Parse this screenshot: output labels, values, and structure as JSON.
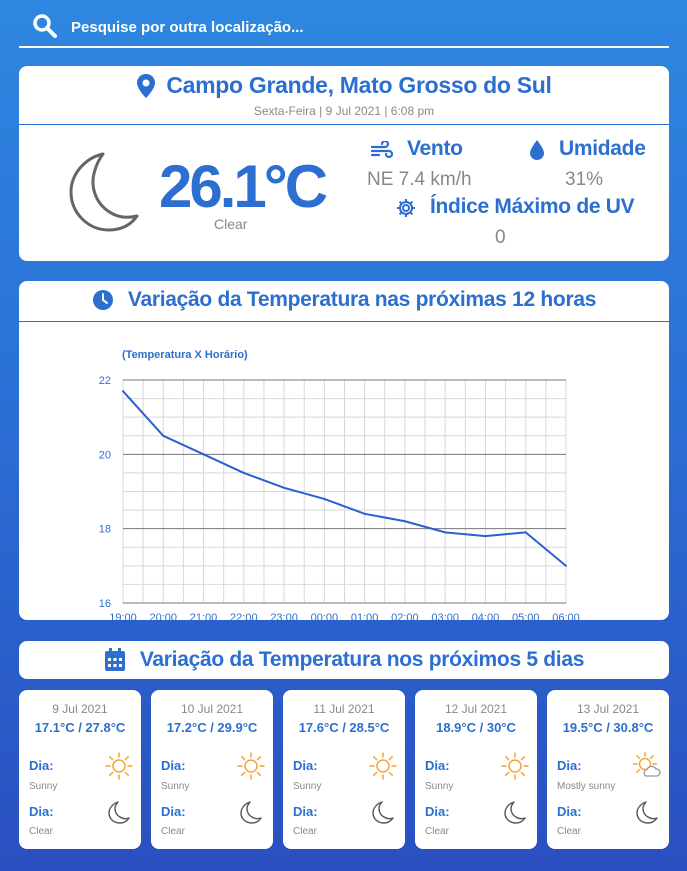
{
  "search": {
    "placeholder": "Pesquise por outra localização...",
    "icon": "search-icon"
  },
  "current": {
    "city": "Campo Grande, Mato Grosso do Sul",
    "datetime": "Sexta-Feira | 9 Jul 2021 | 6:08 pm",
    "temperature": "26.1°C",
    "condition": "Clear",
    "wind": {
      "label": "Vento",
      "value": "NE 7.4 km/h"
    },
    "humidity": {
      "label": "Umidade",
      "value": "31%"
    },
    "uv": {
      "label": "Índice Máximo de UV",
      "value": "0"
    }
  },
  "hourly": {
    "title": "Variação da Temperatura nas próximas 12 horas"
  },
  "chart_data": {
    "type": "line",
    "title": "(Temperatura X Horário)",
    "x": [
      "19:00",
      "20:00",
      "21:00",
      "22:00",
      "23:00",
      "00:00",
      "01:00",
      "02:00",
      "03:00",
      "04:00",
      "05:00",
      "06:00"
    ],
    "series": [
      {
        "values": [
          21.7,
          20.5,
          20.0,
          19.5,
          19.1,
          18.8,
          18.4,
          18.2,
          17.9,
          17.8,
          17.9,
          17.0
        ]
      }
    ],
    "ylim": [
      16,
      22
    ],
    "yticks": [
      "16",
      "18",
      "20",
      "22"
    ],
    "grid": true,
    "color": "#2c5fd1"
  },
  "daily": {
    "title": "Variação da Temperatura nos próximos 5 dias",
    "day_label": "Dia:",
    "days": [
      {
        "date": "9 Jul 2021",
        "range": "17.1°C / 27.8°C",
        "day_cond": "Sunny",
        "night_cond": "Clear",
        "day_icon": "sun-icon"
      },
      {
        "date": "10 Jul 2021",
        "range": "17.2°C / 29.9°C",
        "day_cond": "Sunny",
        "night_cond": "Clear",
        "day_icon": "sun-icon"
      },
      {
        "date": "11 Jul 2021",
        "range": "17.6°C / 28.5°C",
        "day_cond": "Sunny",
        "night_cond": "Clear",
        "day_icon": "sun-icon"
      },
      {
        "date": "12 Jul 2021",
        "range": "18.9°C / 30°C",
        "day_cond": "Sunny",
        "night_cond": "Clear",
        "day_icon": "sun-icon"
      },
      {
        "date": "13 Jul 2021",
        "range": "19.5°C / 30.8°C",
        "day_cond": "Mostly sunny",
        "night_cond": "Clear",
        "day_icon": "sun-cloud-icon"
      }
    ]
  },
  "colors": {
    "accent": "#2c6fd1",
    "muted": "#888888",
    "background_top": "#2e87e0",
    "background_bottom": "#2a4fc0"
  }
}
